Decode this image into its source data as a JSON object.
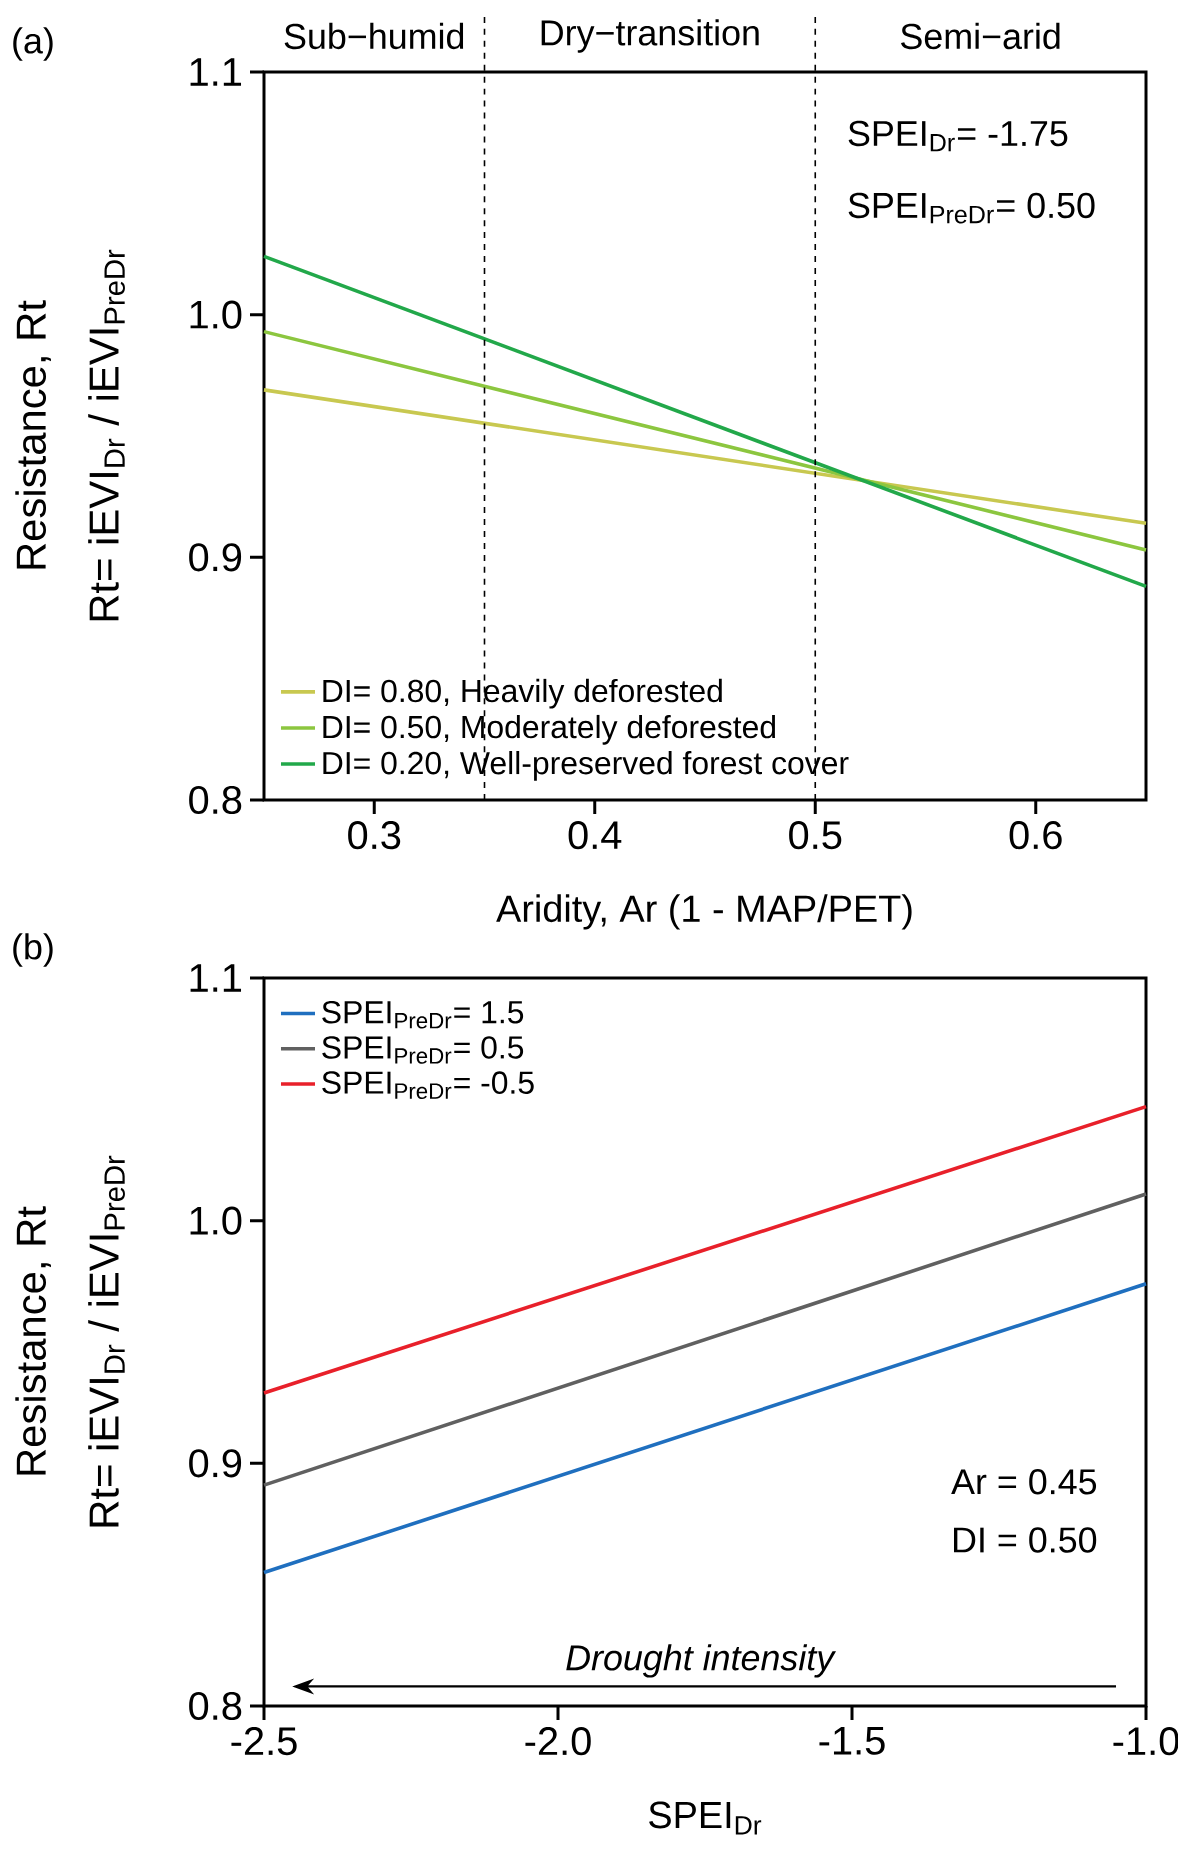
{
  "chart_data": [
    {
      "type": "line",
      "title": "(a)",
      "xlabel": "Aridity, Ar (1 - MAP/PET)",
      "ylabel": "Resistance, Rt",
      "x": [
        0.25,
        0.65
      ],
      "series": [
        {
          "name": "DI= 0.80, Heavily deforested",
          "color": "#c8c850",
          "values": [
            0.969,
            0.914
          ]
        },
        {
          "name": "DI= 0.50, Moderately deforested",
          "color": "#8cc63f",
          "values": [
            0.993,
            0.903
          ]
        },
        {
          "name": "DI= 0.20, Well-preserved forest cover",
          "color": "#22a84a",
          "values": [
            1.024,
            0.888
          ]
        }
      ],
      "xlim": [
        0.25,
        0.65
      ],
      "ylim": [
        0.8,
        1.1
      ],
      "xticks": [
        0.3,
        0.4,
        0.5,
        0.6
      ],
      "yticks": [
        0.8,
        0.9,
        {
          "value": 1.0,
          "label": "1.0"
        },
        1.1
      ],
      "ref_lines": [
        {
          "axis": "x",
          "value": 0.35,
          "line_style": "dashed"
        },
        {
          "axis": "x",
          "value": 0.5,
          "line_style": "dashed"
        }
      ],
      "annotations": [
        "SPEI$_{Dr}$= -1.75",
        "SPEI$_{PreDr}$= 0.50",
        "Rt= iEVI$_{Dr}$ / iEVI$_{PreDr}$",
        "Sub−humid",
        "Dry−transition",
        "Semi−arid"
      ],
      "legend": "bottom left"
    },
    {
      "type": "line",
      "title": "(b)",
      "xlabel": "SPEI$_{Dr}$",
      "ylabel": "Resistance, Rt",
      "x": [
        -2.5,
        -1.0
      ],
      "series": [
        {
          "name": "SPEI$_{PreDr}$=  1.5",
          "color": "#1f6fbf",
          "values": [
            0.855,
            0.974
          ]
        },
        {
          "name": "SPEI$_{PreDr}$=  0.5",
          "color": "#606060",
          "values": [
            0.891,
            1.011
          ]
        },
        {
          "name": "SPEI$_{PreDr}$= -0.5",
          "color": "#e8202a",
          "values": [
            0.929,
            1.047
          ]
        }
      ],
      "xlim": [
        -2.5,
        -1.0
      ],
      "ylim": [
        0.8,
        1.1
      ],
      "xticks": [
        {
          "value": -2.5,
          "label": "-2.5"
        },
        {
          "value": -2.0,
          "label": "-2.0"
        },
        {
          "value": -1.5,
          "label": "-1.5"
        },
        {
          "value": -1.0,
          "label": "-1.0"
        }
      ],
      "yticks": [
        0.8,
        0.9,
        {
          "value": 1.0,
          "label": "1.0"
        },
        1.1
      ],
      "annotations": [
        "Ar = 0.45",
        "DI = 0.50",
        "Drought intensity",
        "Rt= iEVI$_{Dr}$ / iEVI$_{PreDr}$"
      ],
      "legend": "top left"
    }
  ]
}
